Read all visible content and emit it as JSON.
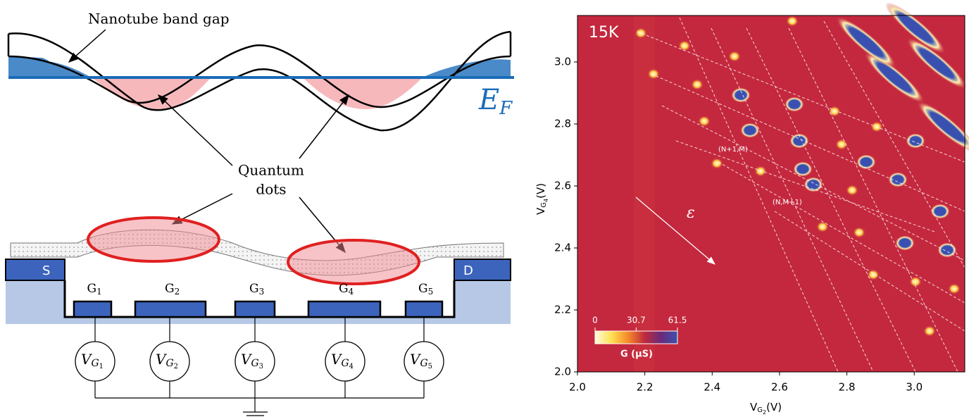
{
  "diagram": {
    "band_gap_label": "Nanotube band gap",
    "fermi": {
      "main": "E",
      "sub": "F"
    },
    "quantum_dots": [
      "Quantum",
      "dots"
    ],
    "source": "S",
    "drain": "D",
    "gates": [
      {
        "main": "G",
        "sub": "1"
      },
      {
        "main": "G",
        "sub": "2"
      },
      {
        "main": "G",
        "sub": "3"
      },
      {
        "main": "G",
        "sub": "4"
      },
      {
        "main": "G",
        "sub": "5"
      }
    ],
    "voltages": [
      {
        "main": "V",
        "sub": "G",
        "subsub": "1"
      },
      {
        "main": "V",
        "sub": "G",
        "subsub": "2"
      },
      {
        "main": "V",
        "sub": "G",
        "subsub": "3"
      },
      {
        "main": "V",
        "sub": "G",
        "subsub": "4"
      },
      {
        "main": "V",
        "sub": "G",
        "subsub": "5"
      }
    ]
  },
  "map": {
    "temperature": "15K",
    "x_label": {
      "main": "V",
      "sub": "G",
      "subsub": "2",
      "unit": "(V)"
    },
    "y_label": {
      "main": "V",
      "sub": "G",
      "subsub": "4",
      "unit": "(V)"
    },
    "xlim": [
      2.0,
      3.15
    ],
    "ylim": [
      2.0,
      3.15
    ],
    "xticks": [
      {
        "value": 2,
        "label": "2.0"
      },
      2.2,
      2.4,
      2.6,
      2.8,
      {
        "value": 3,
        "label": "3.0"
      }
    ],
    "yticks": [
      {
        "value": 2,
        "label": "2.0"
      },
      2.2,
      2.4,
      2.6,
      2.8,
      {
        "value": 3,
        "label": "3.0"
      }
    ],
    "annotations": [
      "(N+1,M)",
      "(N,M+1)"
    ],
    "epsilon": "ε",
    "colorbar": {
      "label": "G (µS)",
      "lim": [
        0,
        61.5
      ],
      "ticks": [
        0,
        30.7,
        61.5
      ]
    }
  }
}
